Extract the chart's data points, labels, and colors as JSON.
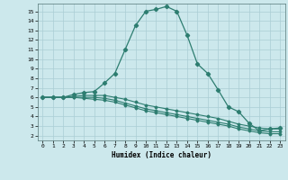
{
  "xlabel": "Humidex (Indice chaleur)",
  "background_color": "#cce8ec",
  "grid_color": "#aacdd4",
  "line_color": "#2d7d70",
  "xlim": [
    -0.5,
    23.5
  ],
  "ylim": [
    1.5,
    15.8
  ],
  "yticks": [
    2,
    3,
    4,
    5,
    6,
    7,
    8,
    9,
    10,
    11,
    12,
    13,
    14,
    15
  ],
  "xticks": [
    0,
    1,
    2,
    3,
    4,
    5,
    6,
    7,
    8,
    9,
    10,
    11,
    12,
    13,
    14,
    15,
    16,
    17,
    18,
    19,
    20,
    21,
    22,
    23
  ],
  "series1_x": [
    0,
    1,
    2,
    3,
    4,
    5,
    6,
    7,
    8,
    9,
    10,
    11,
    12,
    13,
    14,
    15,
    16,
    17,
    18,
    19,
    20,
    21,
    22,
    23
  ],
  "series1_y": [
    6.0,
    6.0,
    6.0,
    6.3,
    6.5,
    6.6,
    7.5,
    8.5,
    11.0,
    13.5,
    15.0,
    15.2,
    15.5,
    15.0,
    12.5,
    9.5,
    8.5,
    6.8,
    5.0,
    4.5,
    3.3,
    2.5,
    2.7,
    2.8
  ],
  "series2_x": [
    0,
    1,
    2,
    3,
    4,
    5,
    6,
    7,
    8,
    9,
    10,
    11,
    12,
    13,
    14,
    15,
    16,
    17,
    18,
    19,
    20,
    21,
    22,
    23
  ],
  "series2_y": [
    6.0,
    6.0,
    6.0,
    6.1,
    6.2,
    6.2,
    6.2,
    6.0,
    5.8,
    5.5,
    5.2,
    5.0,
    4.8,
    4.6,
    4.4,
    4.2,
    4.0,
    3.8,
    3.5,
    3.2,
    3.0,
    2.8,
    2.7,
    2.7
  ],
  "series3_x": [
    0,
    1,
    2,
    3,
    4,
    5,
    6,
    7,
    8,
    9,
    10,
    11,
    12,
    13,
    14,
    15,
    16,
    17,
    18,
    19,
    20,
    21,
    22,
    23
  ],
  "series3_y": [
    6.0,
    6.0,
    6.0,
    6.0,
    6.0,
    6.0,
    5.9,
    5.7,
    5.4,
    5.1,
    4.8,
    4.6,
    4.4,
    4.2,
    4.0,
    3.8,
    3.6,
    3.4,
    3.2,
    2.9,
    2.7,
    2.5,
    2.4,
    2.4
  ],
  "series4_x": [
    0,
    1,
    2,
    3,
    4,
    5,
    6,
    7,
    8,
    9,
    10,
    11,
    12,
    13,
    14,
    15,
    16,
    17,
    18,
    19,
    20,
    21,
    22,
    23
  ],
  "series4_y": [
    6.0,
    6.0,
    6.0,
    6.0,
    5.9,
    5.8,
    5.7,
    5.5,
    5.2,
    4.9,
    4.6,
    4.4,
    4.2,
    4.0,
    3.8,
    3.6,
    3.4,
    3.2,
    3.0,
    2.7,
    2.5,
    2.3,
    2.2,
    2.2
  ]
}
